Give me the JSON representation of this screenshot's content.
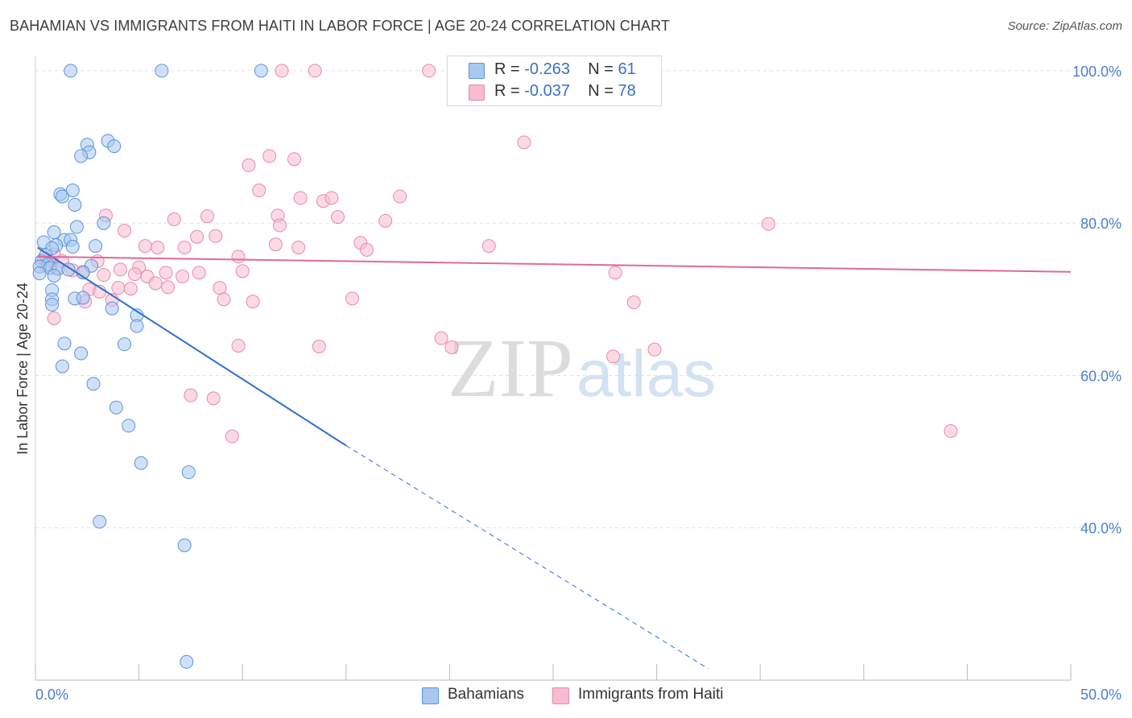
{
  "title": "BAHAMIAN VS IMMIGRANTS FROM HAITI IN LABOR FORCE | AGE 20-24 CORRELATION CHART",
  "source": "Source: ZipAtlas.com",
  "watermark": {
    "zip": "ZIP",
    "atlas": "atlas"
  },
  "legend": {
    "rows": [
      {
        "r_label": "R =",
        "r_value": "-0.263",
        "n_label": "N =",
        "n_value": "61",
        "color": "#a9c8f0"
      },
      {
        "r_label": "R =",
        "r_value": "-0.037",
        "n_label": "N =",
        "n_value": "78",
        "color": "#f7bcd0"
      }
    ]
  },
  "bottom_legend": [
    {
      "label": "Bahamians",
      "color": "#a9c8f0"
    },
    {
      "label": "Immigrants from Haiti",
      "color": "#f7bcd0"
    }
  ],
  "chart_data": {
    "type": "scatter",
    "title": "BAHAMIAN VS IMMIGRANTS FROM HAITI IN LABOR FORCE | AGE 20-24 CORRELATION CHART",
    "xlabel": "",
    "ylabel": "In Labor Force | Age 20-24",
    "xlim": [
      0,
      50
    ],
    "ylim": [
      20,
      102
    ],
    "x_tick_labels": [
      "0.0%",
      "50.0%"
    ],
    "y_ticks": [
      40,
      60,
      80,
      100
    ],
    "y_tick_labels": [
      "40.0%",
      "60.0%",
      "80.0%",
      "100.0%"
    ],
    "colors": {
      "blue_fill": "#a9c8f0",
      "blue_stroke": "#5b93dd",
      "blue_line": "#2f6fd0",
      "pink_fill": "#f7bcd0",
      "pink_stroke": "#e88aa8",
      "pink_line": "#e06a95",
      "grid": "#e2e2e2",
      "axis_label": "#4a7fcf"
    },
    "series": [
      {
        "name": "Bahamians",
        "trend": {
          "x0": 0.1,
          "y0": 76.8,
          "x1": 15.0,
          "y1": 50.8,
          "dash_to_x": 32.5,
          "dash_to_y": 21.5
        },
        "points": [
          [
            1.7,
            100
          ],
          [
            6.1,
            100
          ],
          [
            10.9,
            100
          ],
          [
            2.5,
            90.3
          ],
          [
            3.5,
            90.8
          ],
          [
            2.6,
            89.3
          ],
          [
            3.8,
            90.1
          ],
          [
            2.2,
            88.8
          ],
          [
            1.2,
            83.8
          ],
          [
            1.8,
            84.3
          ],
          [
            1.3,
            83.5
          ],
          [
            1.9,
            82.4
          ],
          [
            2.0,
            79.5
          ],
          [
            3.3,
            80.0
          ],
          [
            0.9,
            78.8
          ],
          [
            0.4,
            77.5
          ],
          [
            1.4,
            77.8
          ],
          [
            1.7,
            77.8
          ],
          [
            1.0,
            77.1
          ],
          [
            1.8,
            76.9
          ],
          [
            0.8,
            76.7
          ],
          [
            2.9,
            77.0
          ],
          [
            0.5,
            75.8
          ],
          [
            0.3,
            75.0
          ],
          [
            0.6,
            74.6
          ],
          [
            0.2,
            74.3
          ],
          [
            0.7,
            74.1
          ],
          [
            1.1,
            74.0
          ],
          [
            1.6,
            73.9
          ],
          [
            2.7,
            74.4
          ],
          [
            0.2,
            73.4
          ],
          [
            0.9,
            73.1
          ],
          [
            2.3,
            73.5
          ],
          [
            0.8,
            71.2
          ],
          [
            1.9,
            70.1
          ],
          [
            0.8,
            70.0
          ],
          [
            0.8,
            69.3
          ],
          [
            2.3,
            70.2
          ],
          [
            3.7,
            68.8
          ],
          [
            4.9,
            67.9
          ],
          [
            4.9,
            66.5
          ],
          [
            1.4,
            64.2
          ],
          [
            4.3,
            64.1
          ],
          [
            2.2,
            62.9
          ],
          [
            1.3,
            61.2
          ],
          [
            2.8,
            58.9
          ],
          [
            3.9,
            55.8
          ],
          [
            4.5,
            53.4
          ],
          [
            5.1,
            48.5
          ],
          [
            7.4,
            47.3
          ],
          [
            3.1,
            40.8
          ],
          [
            7.2,
            37.7
          ],
          [
            7.3,
            22.4
          ]
        ]
      },
      {
        "name": "Immigrants from Haiti",
        "trend": {
          "x0": 0.1,
          "y0": 75.6,
          "x1": 50.0,
          "y1": 73.6
        },
        "points": [
          [
            11.9,
            100
          ],
          [
            13.5,
            100
          ],
          [
            19.0,
            100
          ],
          [
            23.6,
            90.6
          ],
          [
            11.3,
            88.8
          ],
          [
            12.5,
            88.4
          ],
          [
            10.3,
            87.6
          ],
          [
            10.8,
            84.3
          ],
          [
            12.8,
            83.3
          ],
          [
            13.9,
            82.9
          ],
          [
            14.3,
            83.3
          ],
          [
            17.6,
            83.5
          ],
          [
            3.4,
            81.0
          ],
          [
            6.7,
            80.5
          ],
          [
            8.3,
            80.9
          ],
          [
            11.7,
            81.0
          ],
          [
            14.6,
            80.8
          ],
          [
            16.9,
            80.3
          ],
          [
            35.4,
            79.9
          ],
          [
            4.3,
            79.0
          ],
          [
            7.8,
            78.2
          ],
          [
            8.7,
            78.3
          ],
          [
            11.8,
            79.7
          ],
          [
            15.7,
            77.4
          ],
          [
            5.3,
            77.0
          ],
          [
            5.9,
            76.8
          ],
          [
            7.2,
            76.8
          ],
          [
            11.6,
            77.2
          ],
          [
            12.7,
            76.8
          ],
          [
            16.0,
            76.5
          ],
          [
            21.9,
            77.0
          ],
          [
            0.4,
            75.3
          ],
          [
            0.5,
            74.4
          ],
          [
            0.9,
            75.9
          ],
          [
            1.0,
            74.1
          ],
          [
            1.3,
            75.0
          ],
          [
            1.8,
            73.8
          ],
          [
            2.3,
            73.6
          ],
          [
            3.0,
            75.0
          ],
          [
            3.3,
            73.2
          ],
          [
            4.1,
            73.9
          ],
          [
            5.0,
            74.2
          ],
          [
            5.4,
            73.0
          ],
          [
            6.3,
            73.5
          ],
          [
            7.1,
            73.0
          ],
          [
            7.9,
            73.5
          ],
          [
            9.8,
            75.6
          ],
          [
            10.0,
            73.7
          ],
          [
            4.8,
            73.3
          ],
          [
            5.8,
            72.1
          ],
          [
            2.6,
            71.3
          ],
          [
            3.1,
            71.0
          ],
          [
            4.0,
            71.5
          ],
          [
            4.6,
            71.4
          ],
          [
            6.4,
            71.6
          ],
          [
            8.9,
            71.5
          ],
          [
            2.4,
            69.7
          ],
          [
            3.7,
            69.9
          ],
          [
            9.1,
            70.0
          ],
          [
            10.5,
            69.7
          ],
          [
            15.3,
            70.1
          ],
          [
            28.0,
            73.5
          ],
          [
            28.9,
            69.6
          ],
          [
            0.9,
            67.5
          ],
          [
            9.8,
            63.9
          ],
          [
            13.7,
            63.8
          ],
          [
            19.6,
            64.9
          ],
          [
            20.1,
            63.7
          ],
          [
            27.9,
            62.5
          ],
          [
            29.9,
            63.4
          ],
          [
            7.5,
            57.4
          ],
          [
            8.6,
            57.0
          ],
          [
            9.5,
            52.0
          ],
          [
            44.2,
            52.7
          ]
        ]
      }
    ]
  }
}
